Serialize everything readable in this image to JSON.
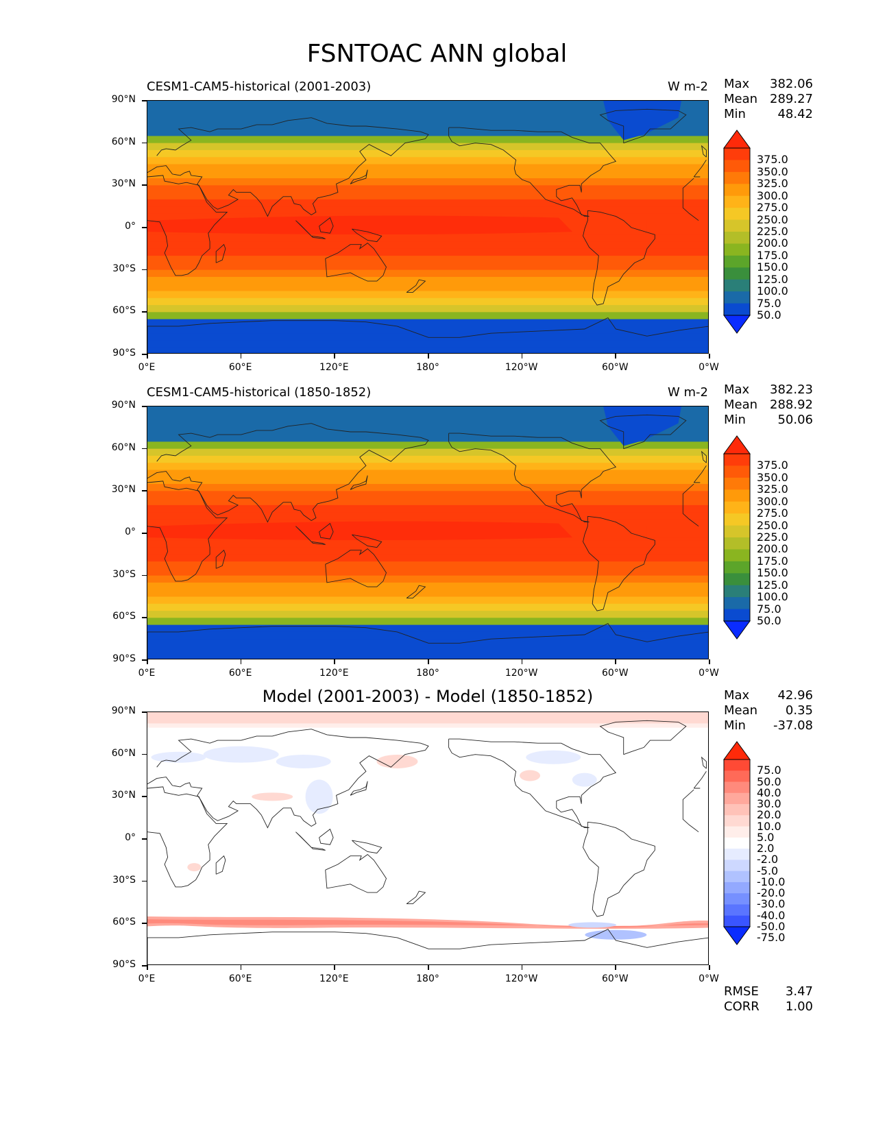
{
  "figure": {
    "title": "FSNTOAC ANN global",
    "ylabels": [
      "90°N",
      "60°N",
      "30°N",
      "0°",
      "30°S",
      "60°S",
      "90°S"
    ],
    "xlabels": [
      "0°E",
      "60°E",
      "120°E",
      "180°",
      "120°W",
      "60°W",
      "0°W"
    ]
  },
  "panels": [
    {
      "title": "CESM1-CAM5-historical (2001-2003)",
      "units": "W m-2",
      "stats": [
        {
          "label": "Max",
          "value": "382.06"
        },
        {
          "label": "Mean",
          "value": "289.27"
        },
        {
          "label": "Min",
          "value": "48.42"
        }
      ]
    },
    {
      "title": "CESM1-CAM5-historical (1850-1852)",
      "units": "W m-2",
      "stats": [
        {
          "label": "Max",
          "value": "382.23"
        },
        {
          "label": "Mean",
          "value": "288.92"
        },
        {
          "label": "Min",
          "value": "50.06"
        }
      ]
    },
    {
      "title": "Model (2001-2003) - Model (1850-1852)",
      "units": "",
      "stats": [
        {
          "label": "Max",
          "value": "42.96"
        },
        {
          "label": "Mean",
          "value": "0.35"
        },
        {
          "label": "Min",
          "value": "-37.08"
        }
      ],
      "extra": [
        {
          "label": "RMSE",
          "value": "3.47"
        },
        {
          "label": "CORR",
          "value": "1.00"
        }
      ]
    }
  ],
  "colorbars": {
    "field": {
      "labels": [
        "375.0",
        "350.0",
        "325.0",
        "300.0",
        "275.0",
        "250.0",
        "225.0",
        "200.0",
        "175.0",
        "150.0",
        "125.0",
        "100.0",
        "75.0",
        "50.0"
      ],
      "colors": [
        "#ff2a0a",
        "#ff3d0a",
        "#ff5a08",
        "#ff7a08",
        "#ff9a0a",
        "#ffb318",
        "#f5c825",
        "#d6c52a",
        "#b3be28",
        "#8ab520",
        "#5ca52a",
        "#3a8f3c",
        "#2a7f78",
        "#1a6aa8",
        "#0a4bd0",
        "#0a2cff"
      ]
    },
    "diff": {
      "labels": [
        "75.0",
        "50.0",
        "40.0",
        "30.0",
        "20.0",
        "10.0",
        "5.0",
        "2.0",
        "-2.0",
        "-5.0",
        "-10.0",
        "-20.0",
        "-30.0",
        "-40.0",
        "-50.0",
        "-75.0"
      ],
      "colors": [
        "#ff2a0a",
        "#ff4a35",
        "#ff6a58",
        "#ff8a7c",
        "#ffa89c",
        "#ffc2b8",
        "#ffd9d2",
        "#ffeeea",
        "#ffffff",
        "#e6ecff",
        "#cdd8ff",
        "#b0c2ff",
        "#93a9ff",
        "#7690ff",
        "#5a75ff",
        "#3a55ff",
        "#0a2cff"
      ]
    }
  }
}
